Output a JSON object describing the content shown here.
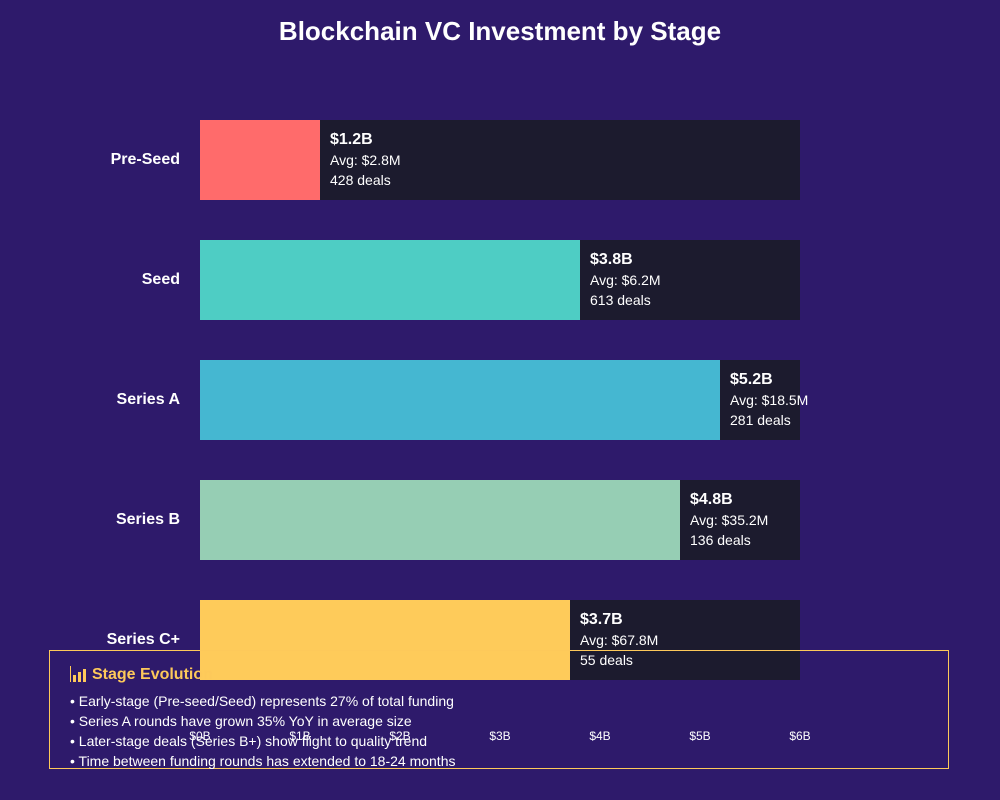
{
  "chart_data": {
    "type": "bar",
    "orientation": "horizontal",
    "title": "Blockchain VC Investment by Stage",
    "xlim": [
      0,
      6
    ],
    "x_ticks": [
      "$0B",
      "$1B",
      "$2B",
      "$3B",
      "$4B",
      "$5B",
      "$6B"
    ],
    "categories": [
      "Pre-Seed",
      "Seed",
      "Series A",
      "Series B",
      "Series C+"
    ],
    "values": [
      1.2,
      3.8,
      5.2,
      4.8,
      3.7
    ],
    "value_labels": [
      "$1.2B",
      "$3.8B",
      "$5.2B",
      "$4.8B",
      "$3.7B"
    ],
    "avg_labels": [
      "Avg: $2.8M",
      "Avg: $6.2M",
      "Avg: $18.5M",
      "Avg: $35.2M",
      "Avg: $67.8M"
    ],
    "deal_labels": [
      "428 deals",
      "613 deals",
      "281 deals",
      "136 deals",
      "55 deals"
    ],
    "colors": [
      "#ff6b6b",
      "#4ecdc4",
      "#45b7d1",
      "#96ceb4",
      "#fecb5a"
    ],
    "track_color": "#1c1b2e"
  },
  "insights": {
    "icon": "bar-chart-icon",
    "title": "Stage Evolution",
    "items": [
      "• Early-stage (Pre-seed/Seed) represents 27% of total funding",
      "• Series A rounds have grown 35% YoY in average size",
      "• Later-stage deals (Series B+) show flight to quality trend",
      "• Time between funding rounds has extended to 18-24 months"
    ]
  }
}
